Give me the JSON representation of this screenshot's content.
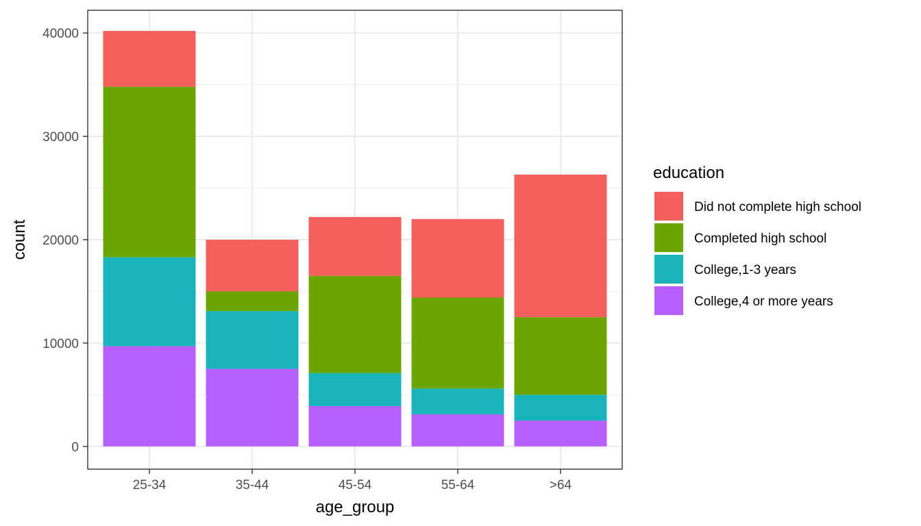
{
  "chart_data": {
    "type": "bar",
    "stacked": true,
    "title": "",
    "xlabel": "age_group",
    "ylabel": "count",
    "categories": [
      "25-34",
      "35-44",
      "45-54",
      "55-64",
      ">64"
    ],
    "ylim": [
      -2200,
      42200
    ],
    "yticks": [
      0,
      10000,
      20000,
      30000,
      40000
    ],
    "ytick_labels": [
      "0",
      "10000",
      "20000",
      "30000",
      "40000"
    ],
    "grid": true,
    "legend": {
      "title": "education",
      "position": "right"
    },
    "series": [
      {
        "name": "College,4 or more years",
        "color": "#B75FFF",
        "values": [
          9700,
          7500,
          3900,
          3100,
          2500
        ]
      },
      {
        "name": "College,1-3 years",
        "color": "#18B4B9",
        "values": [
          8600,
          5600,
          3200,
          2500,
          2500
        ]
      },
      {
        "name": "Completed high school",
        "color": "#6AA500",
        "values": [
          16500,
          1900,
          9400,
          8800,
          7500
        ]
      },
      {
        "name": "Did not complete high school",
        "color": "#F3605C",
        "values": [
          5400,
          5000,
          5700,
          7600,
          13800
        ]
      }
    ],
    "legend_order": [
      "Did not complete high school",
      "Completed high school",
      "College,1-3 years",
      "College,4 or more years"
    ]
  }
}
